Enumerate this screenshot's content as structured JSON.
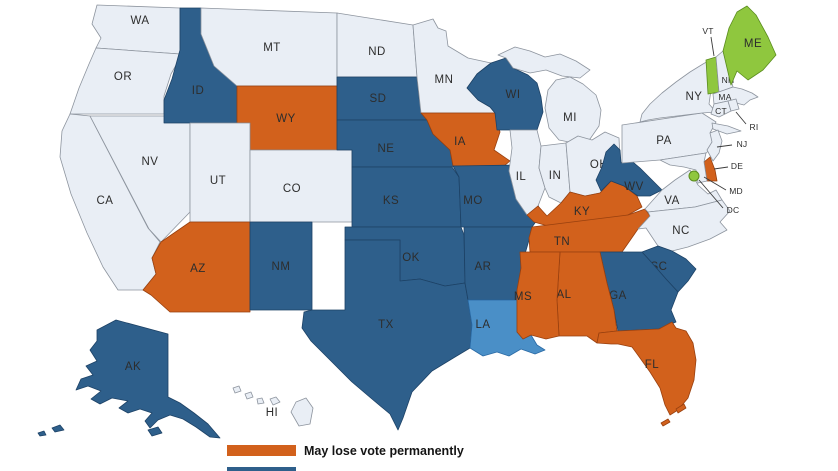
{
  "legend": {
    "items": [
      {
        "label": "May lose vote permanently",
        "color": "#d2611c"
      },
      {
        "label": "",
        "color": "#2e5f8b"
      }
    ]
  },
  "colors": {
    "default": "#e9eef5",
    "may_lose_vote_permanently": "#d2611c",
    "dark_blue": "#2e5f8b",
    "medium_blue": "#4a8fc7",
    "green": "#8fc73e"
  },
  "map": {
    "states": [
      {
        "id": "WA",
        "category": "default"
      },
      {
        "id": "OR",
        "category": "default"
      },
      {
        "id": "CA",
        "category": "default"
      },
      {
        "id": "NV",
        "category": "default"
      },
      {
        "id": "ID",
        "category": "dark_blue"
      },
      {
        "id": "MT",
        "category": "default"
      },
      {
        "id": "WY",
        "category": "may_lose_vote_permanently"
      },
      {
        "id": "UT",
        "category": "default"
      },
      {
        "id": "CO",
        "category": "default"
      },
      {
        "id": "AZ",
        "category": "may_lose_vote_permanently"
      },
      {
        "id": "NM",
        "category": "dark_blue"
      },
      {
        "id": "ND",
        "category": "default"
      },
      {
        "id": "SD",
        "category": "dark_blue"
      },
      {
        "id": "NE",
        "category": "dark_blue"
      },
      {
        "id": "KS",
        "category": "dark_blue"
      },
      {
        "id": "OK",
        "category": "dark_blue"
      },
      {
        "id": "TX",
        "category": "dark_blue"
      },
      {
        "id": "MN",
        "category": "default"
      },
      {
        "id": "IA",
        "category": "may_lose_vote_permanently"
      },
      {
        "id": "MO",
        "category": "dark_blue"
      },
      {
        "id": "AR",
        "category": "dark_blue"
      },
      {
        "id": "LA",
        "category": "medium_blue"
      },
      {
        "id": "WI",
        "category": "dark_blue"
      },
      {
        "id": "MI",
        "category": "default"
      },
      {
        "id": "IL",
        "category": "default"
      },
      {
        "id": "IN",
        "category": "default"
      },
      {
        "id": "OH",
        "category": "default"
      },
      {
        "id": "KY",
        "category": "may_lose_vote_permanently"
      },
      {
        "id": "TN",
        "category": "may_lose_vote_permanently"
      },
      {
        "id": "WV",
        "category": "dark_blue"
      },
      {
        "id": "VA",
        "category": "default"
      },
      {
        "id": "NC",
        "category": "default"
      },
      {
        "id": "SC",
        "category": "dark_blue"
      },
      {
        "id": "GA",
        "category": "dark_blue"
      },
      {
        "id": "AL",
        "category": "may_lose_vote_permanently"
      },
      {
        "id": "MS",
        "category": "may_lose_vote_permanently"
      },
      {
        "id": "FL",
        "category": "may_lose_vote_permanently"
      },
      {
        "id": "PA",
        "category": "default"
      },
      {
        "id": "NY",
        "category": "default"
      },
      {
        "id": "NJ",
        "category": "default"
      },
      {
        "id": "DE",
        "category": "may_lose_vote_permanently"
      },
      {
        "id": "MD",
        "category": "default"
      },
      {
        "id": "VT",
        "category": "green"
      },
      {
        "id": "NH",
        "category": "default"
      },
      {
        "id": "ME",
        "category": "green"
      },
      {
        "id": "MA",
        "category": "default"
      },
      {
        "id": "CT",
        "category": "default"
      },
      {
        "id": "RI",
        "category": "default"
      },
      {
        "id": "DC",
        "category": "green"
      },
      {
        "id": "AK",
        "category": "dark_blue"
      },
      {
        "id": "HI",
        "category": "default"
      }
    ]
  }
}
